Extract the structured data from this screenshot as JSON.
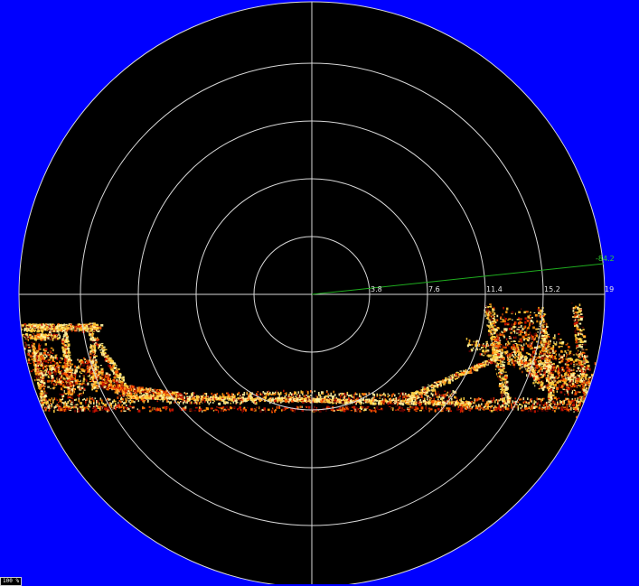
{
  "display": {
    "background_color": "#0000ff",
    "scope_color": "#000000",
    "grid_color": "#d8d8d8",
    "bearing_line_color": "#1fae1f",
    "bearing_label_color": "#2fd22f",
    "range_label_color": "#e6e6e6",
    "echo_colors": [
      "#5a0000",
      "#c81400",
      "#ff5a00",
      "#ff9a10",
      "#ffd040",
      "#fff2a0"
    ]
  },
  "range_rings": {
    "labels": [
      "3.8",
      "7.6",
      "11.4",
      "15.2",
      "19"
    ]
  },
  "bearing": {
    "label": "-84.2"
  },
  "status_badge": {
    "text": "100 %"
  }
}
